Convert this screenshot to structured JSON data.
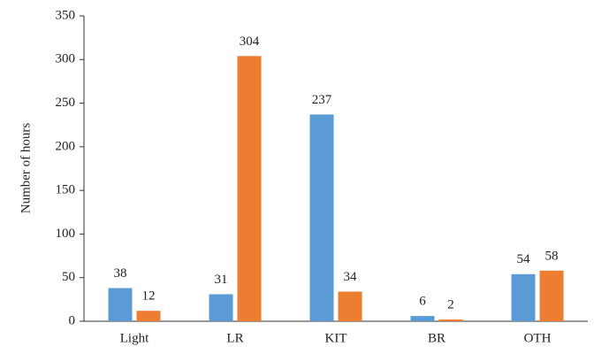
{
  "chart_data": {
    "type": "bar",
    "y_label": "Number of hours",
    "categories": [
      "Light",
      "LR",
      "KIT",
      "BR",
      "OTH"
    ],
    "series": [
      {
        "color": "#5b9bd5",
        "values": [
          38,
          31,
          237,
          6,
          54
        ]
      },
      {
        "color": "#ed7d31",
        "values": [
          12,
          304,
          34,
          2,
          58
        ]
      }
    ],
    "ylim": [
      0,
      350
    ],
    "yticks": [
      0,
      50,
      100,
      150,
      200,
      250,
      300,
      350
    ]
  }
}
